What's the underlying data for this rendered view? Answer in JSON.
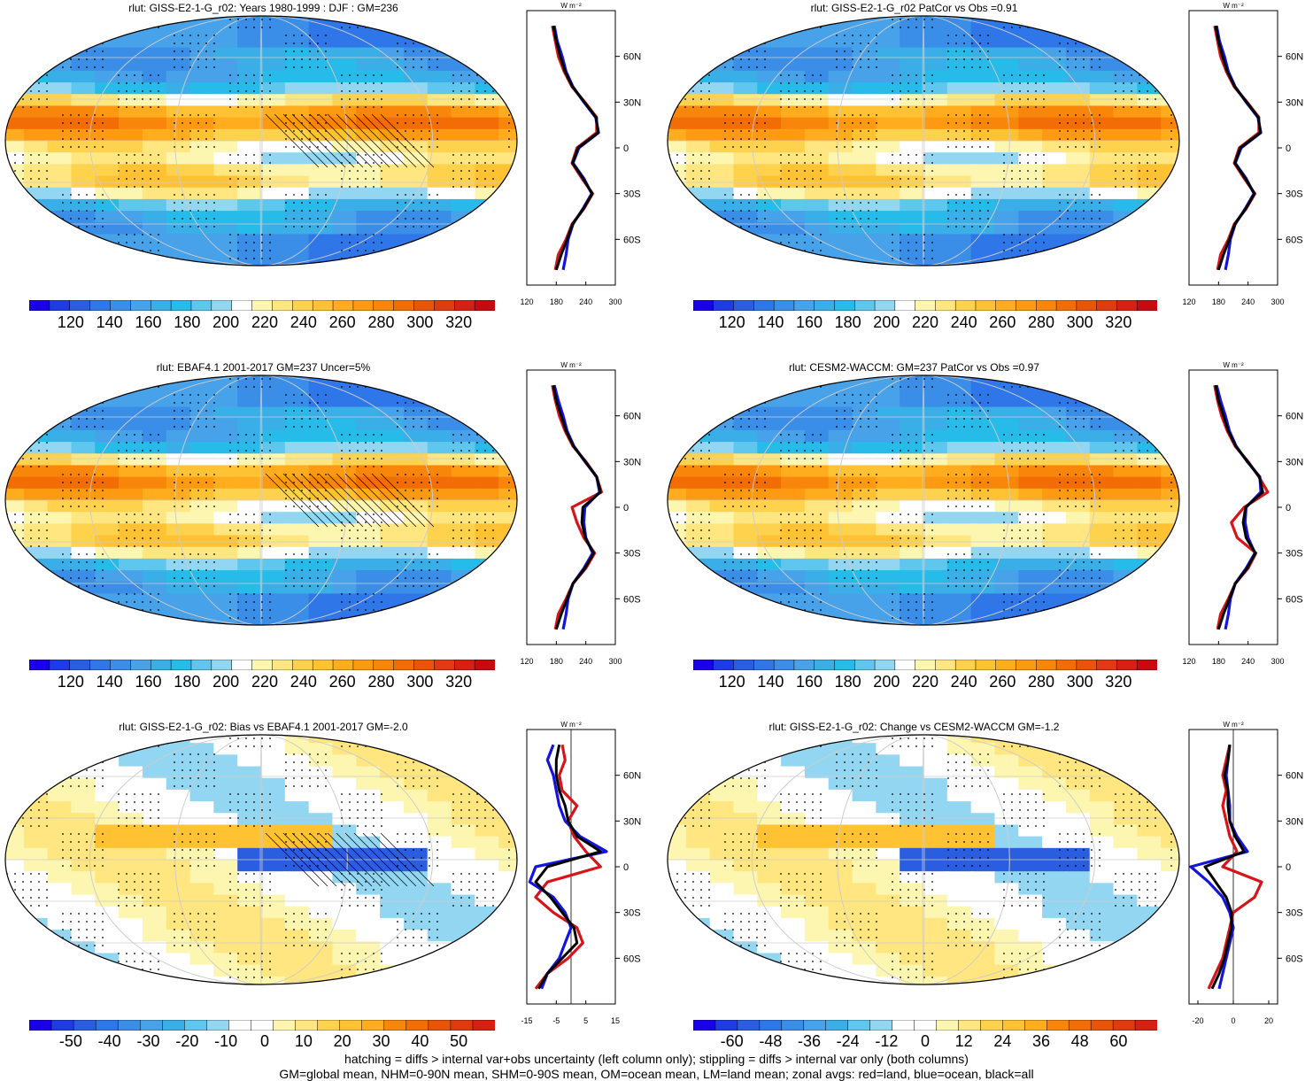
{
  "variable": "rlut",
  "units_label": "W m⁻²",
  "colors": {
    "abs_scale": [
      "#1a00e8",
      "#1f3be6",
      "#2a5de0",
      "#2f76e8",
      "#3a8ee8",
      "#48a2ea",
      "#3aaee6",
      "#26bbe8",
      "#5fc6ee",
      "#93d6f2",
      "#ffffff",
      "#fdf6b0",
      "#ffe680",
      "#ffd24d",
      "#ffc233",
      "#ffad1f",
      "#fd9a12",
      "#f7860a",
      "#f26d05",
      "#ea5408",
      "#e03a10",
      "#d62014",
      "#c80a10"
    ],
    "diff_scale": [
      "#1a00e8",
      "#1f3be6",
      "#2a5de0",
      "#2f76e8",
      "#3a8ee8",
      "#48a2ea",
      "#3aaee6",
      "#5fc6ee",
      "#93d6f2",
      "#ffffff",
      "#ffffff",
      "#fdf6b0",
      "#ffe680",
      "#ffd24d",
      "#ffc233",
      "#ffad1f",
      "#f7860a",
      "#f26d05",
      "#ea5408",
      "#e03a10",
      "#d62014"
    ],
    "land_line": "#d8141a",
    "ocean_line": "#1414e0",
    "all_line": "#000000"
  },
  "panels": [
    {
      "id": "p1",
      "title": "rlut: GISS-E2-1-G_r02: Years 1980-1999 : DJF : GM=236",
      "colorbar_labels": [
        "120",
        "140",
        "160",
        "180",
        "200",
        "220",
        "240",
        "260",
        "280",
        "300",
        "320"
      ],
      "zonal_xticks": [
        "120",
        "180",
        "240",
        "300"
      ],
      "scale": "abs",
      "hatching": true
    },
    {
      "id": "p2",
      "title": "rlut: GISS-E2-1-G_r02 PatCor vs Obs =0.91",
      "colorbar_labels": [
        "120",
        "140",
        "160",
        "180",
        "200",
        "220",
        "240",
        "260",
        "280",
        "300",
        "320"
      ],
      "zonal_xticks": [
        "120",
        "180",
        "240",
        "300"
      ],
      "scale": "abs",
      "hatching": false
    },
    {
      "id": "p3",
      "title": "rlut: EBAF4.1 2001-2017 GM=237 Uncer=5%",
      "colorbar_labels": [
        "120",
        "140",
        "160",
        "180",
        "200",
        "220",
        "240",
        "260",
        "280",
        "300",
        "320"
      ],
      "zonal_xticks": [
        "120",
        "180",
        "240",
        "300"
      ],
      "scale": "abs",
      "hatching": true
    },
    {
      "id": "p4",
      "title": "rlut: CESM2-WACCM: GM=237 PatCor vs Obs =0.97",
      "colorbar_labels": [
        "120",
        "140",
        "160",
        "180",
        "200",
        "220",
        "240",
        "260",
        "280",
        "300",
        "320"
      ],
      "zonal_xticks": [
        "120",
        "180",
        "240",
        "300"
      ],
      "scale": "abs",
      "hatching": false
    },
    {
      "id": "p5",
      "title": "rlut: GISS-E2-1-G_r02: Bias vs EBAF4.1 2001-2017 GM=-2.0",
      "colorbar_labels": [
        "-50",
        "-40",
        "-30",
        "-20",
        "-10",
        "0",
        "10",
        "20",
        "30",
        "40",
        "50"
      ],
      "zonal_xticks": [
        "-15",
        "-5",
        "5",
        "15"
      ],
      "scale": "diff",
      "hatching": true
    },
    {
      "id": "p6",
      "title": "rlut: GISS-E2-1-G_r02: Change vs CESM2-WACCM GM=-1.2",
      "colorbar_labels": [
        "-60",
        "-48",
        "-36",
        "-24",
        "-12",
        "0",
        "12",
        "24",
        "36",
        "48",
        "60"
      ],
      "zonal_xticks": [
        "-20",
        "0",
        "20"
      ],
      "scale": "diff",
      "hatching": false
    }
  ],
  "lat_labels": [
    "60N",
    "30N",
    "0",
    "30S",
    "60S"
  ],
  "footer": {
    "line1": "hatching = diffs > internal var+obs uncertainty (left column only); stippling = diffs > internal var only (both columns)",
    "line2": "GM=global mean, NHM=0-90N mean, SHM=0-90S mean, OM=ocean mean, LM=land mean; zonal avgs: red=land, blue=ocean, black=all"
  },
  "chart_data": [
    {
      "type": "line",
      "title": "rlut: GISS-E2-1-G_r02: Years 1980-1999 : DJF : GM=236",
      "xlim": [
        120,
        300
      ],
      "ylabel": "",
      "x_lat": [
        80,
        70,
        60,
        50,
        40,
        30,
        20,
        10,
        0,
        -10,
        -20,
        -30,
        -40,
        -50,
        -60,
        -70,
        -80
      ],
      "series": [
        {
          "name": "land",
          "values": [
            172,
            178,
            184,
            196,
            212,
            238,
            262,
            262,
            222,
            212,
            232,
            254,
            236,
            212,
            200,
            184,
            178
          ]
        },
        {
          "name": "ocean",
          "values": [
            176,
            182,
            192,
            200,
            214,
            236,
            260,
            266,
            226,
            214,
            236,
            252,
            234,
            214,
            204,
            200,
            194
          ]
        },
        {
          "name": "all",
          "values": [
            174,
            180,
            188,
            198,
            213,
            237,
            261,
            265,
            224,
            213,
            234,
            253,
            235,
            213,
            202,
            190,
            180
          ]
        }
      ]
    },
    {
      "type": "line",
      "title": "rlut: GISS-E2-1-G_r02 PatCor vs Obs =0.91",
      "xlim": [
        120,
        300
      ],
      "ylabel": "",
      "x_lat": [
        80,
        70,
        60,
        50,
        40,
        30,
        20,
        10,
        0,
        -10,
        -20,
        -30,
        -40,
        -50,
        -60,
        -70,
        -80
      ],
      "series": [
        {
          "name": "land",
          "values": [
            172,
            178,
            184,
            196,
            212,
            238,
            262,
            262,
            222,
            212,
            232,
            254,
            236,
            212,
            200,
            184,
            178
          ]
        },
        {
          "name": "ocean",
          "values": [
            176,
            182,
            192,
            200,
            214,
            236,
            260,
            266,
            226,
            214,
            236,
            252,
            234,
            214,
            204,
            200,
            194
          ]
        },
        {
          "name": "all",
          "values": [
            174,
            180,
            188,
            198,
            213,
            237,
            261,
            265,
            224,
            213,
            234,
            253,
            235,
            213,
            202,
            190,
            180
          ]
        }
      ]
    },
    {
      "type": "line",
      "title": "rlut: EBAF4.1 2001-2017 GM=237 Uncer=5%",
      "xlim": [
        120,
        300
      ],
      "ylabel": "",
      "x_lat": [
        80,
        70,
        60,
        50,
        40,
        30,
        20,
        10,
        0,
        -10,
        -20,
        -30,
        -40,
        -50,
        -60,
        -70,
        -80
      ],
      "series": [
        {
          "name": "land",
          "values": [
            172,
            178,
            186,
            198,
            214,
            240,
            262,
            272,
            212,
            222,
            236,
            258,
            240,
            214,
            200,
            184,
            178
          ]
        },
        {
          "name": "ocean",
          "values": [
            176,
            184,
            194,
            202,
            216,
            238,
            262,
            268,
            238,
            236,
            240,
            254,
            236,
            214,
            204,
            200,
            194
          ]
        },
        {
          "name": "all",
          "values": [
            174,
            180,
            190,
            200,
            215,
            239,
            262,
            270,
            234,
            232,
            239,
            256,
            238,
            214,
            202,
            190,
            180
          ]
        }
      ]
    },
    {
      "type": "line",
      "title": "rlut: CESM2-WACCM: GM=237 PatCor vs Obs =0.97",
      "xlim": [
        120,
        300
      ],
      "ylabel": "",
      "x_lat": [
        80,
        70,
        60,
        50,
        40,
        30,
        20,
        10,
        0,
        -10,
        -20,
        -30,
        -40,
        -50,
        -60,
        -70,
        -80
      ],
      "series": [
        {
          "name": "land",
          "values": [
            172,
            178,
            186,
            198,
            214,
            240,
            262,
            280,
            232,
            206,
            218,
            256,
            240,
            214,
            200,
            184,
            178
          ]
        },
        {
          "name": "ocean",
          "values": [
            176,
            184,
            194,
            202,
            216,
            238,
            264,
            266,
            236,
            234,
            240,
            254,
            236,
            214,
            204,
            200,
            194
          ]
        },
        {
          "name": "all",
          "values": [
            174,
            180,
            190,
            200,
            215,
            239,
            263,
            270,
            235,
            230,
            236,
            255,
            238,
            214,
            202,
            190,
            180
          ]
        }
      ]
    },
    {
      "type": "line",
      "title": "rlut: GISS-E2-1-G_r02: Bias vs EBAF4.1 2001-2017 GM=-2.0",
      "xlim": [
        -15,
        15
      ],
      "ylabel": "",
      "x_lat": [
        80,
        70,
        60,
        50,
        40,
        30,
        20,
        10,
        0,
        -10,
        -20,
        -30,
        -40,
        -50,
        -60,
        -70,
        -80
      ],
      "series": [
        {
          "name": "land",
          "values": [
            -3,
            -2,
            -4,
            -3,
            2,
            -1,
            1,
            5,
            10,
            -8,
            -12,
            -6,
            2,
            4,
            -1,
            -8,
            -12
          ]
        },
        {
          "name": "ocean",
          "values": [
            -6,
            -8,
            -6,
            -5,
            -4,
            -2,
            3,
            12,
            -12,
            -14,
            -6,
            -2,
            0,
            -2,
            -4,
            -8,
            -10
          ]
        },
        {
          "name": "all",
          "values": [
            -4,
            -5,
            -5,
            -4,
            -2,
            -1,
            2,
            10,
            -8,
            -12,
            -7,
            -3,
            1,
            2,
            -3,
            -8,
            -11
          ]
        }
      ]
    },
    {
      "type": "line",
      "title": "rlut: GISS-E2-1-G_r02: Change vs CESM2-WACCM GM=-1.2",
      "xlim": [
        -25,
        25
      ],
      "ylabel": "",
      "x_lat": [
        80,
        70,
        60,
        50,
        40,
        30,
        20,
        10,
        0,
        -10,
        -20,
        -30,
        -40,
        -50,
        -60,
        -70,
        -80
      ],
      "series": [
        {
          "name": "land",
          "values": [
            -2,
            -4,
            -6,
            -4,
            -6,
            -4,
            -2,
            2,
            -6,
            16,
            12,
            0,
            -2,
            -4,
            -6,
            -10,
            -14
          ]
        },
        {
          "name": "ocean",
          "values": [
            -2,
            -3,
            -4,
            -3,
            -2,
            -2,
            2,
            8,
            -24,
            -14,
            -6,
            -2,
            0,
            -2,
            -4,
            -6,
            -8
          ]
        },
        {
          "name": "all",
          "values": [
            -2,
            -3,
            -5,
            -3,
            -3,
            -2,
            1,
            6,
            -16,
            -10,
            -4,
            -1,
            -1,
            -3,
            -5,
            -8,
            -12
          ]
        }
      ]
    }
  ]
}
